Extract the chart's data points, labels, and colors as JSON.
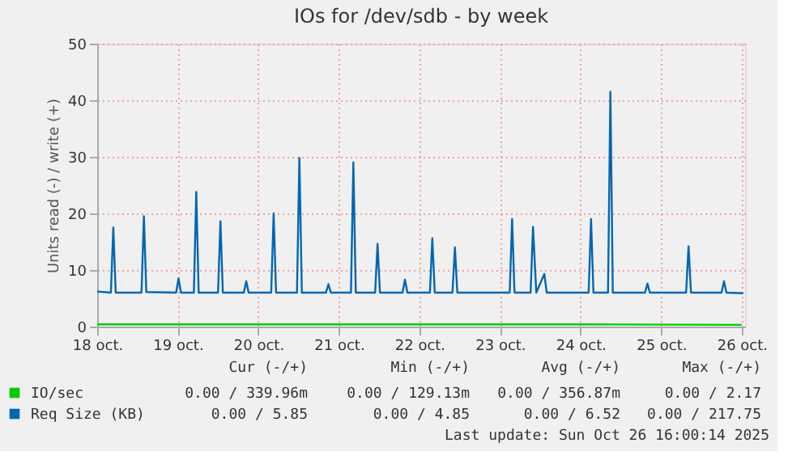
{
  "chart_data": {
    "type": "line",
    "title": "IOs for /dev/sdb - by week",
    "ylabel": "Units read (-) / write (+)",
    "xlim": [
      "2025-10-18T00:00",
      "2025-10-26T01:00"
    ],
    "ylim": [
      0,
      50
    ],
    "xticks": [
      {
        "value": "2025-10-18",
        "label": "18 oct."
      },
      {
        "value": "2025-10-19",
        "label": "19 oct."
      },
      {
        "value": "2025-10-20",
        "label": "20 oct."
      },
      {
        "value": "2025-10-21",
        "label": "21 oct."
      },
      {
        "value": "2025-10-22",
        "label": "22 oct."
      },
      {
        "value": "2025-10-23",
        "label": "23 oct."
      },
      {
        "value": "2025-10-24",
        "label": "24 oct."
      },
      {
        "value": "2025-10-25",
        "label": "25 oct."
      },
      {
        "value": "2025-10-26",
        "label": "26 oct."
      }
    ],
    "yticks": [
      0,
      10,
      20,
      30,
      40,
      50
    ],
    "grid": true,
    "legend": "bottom",
    "series": [
      {
        "name": "IO/sec",
        "color": "#00cc00",
        "x": [
          "2025-10-18T00:00",
          "2025-10-20T00:00",
          "2025-10-22T00:00",
          "2025-10-24T00:00",
          "2025-10-26T00:00"
        ],
        "values": [
          0.4,
          0.4,
          0.4,
          0.4,
          0.3
        ]
      },
      {
        "name": "Req Size (KB)",
        "color": "#0066b3",
        "x": [
          "2025-10-18T00:00",
          "2025-10-18T04:05",
          "2025-10-18T04:48",
          "2025-10-18T05:31",
          "2025-10-18T13:12",
          "2025-10-18T13:55",
          "2025-10-18T14:38",
          "2025-10-18T23:31",
          "2025-10-19T00:14",
          "2025-10-19T00:58",
          "2025-10-19T04:48",
          "2025-10-19T05:31",
          "2025-10-19T06:14",
          "2025-10-19T12:00",
          "2025-10-19T12:43",
          "2025-10-19T13:26",
          "2025-10-19T19:41",
          "2025-10-19T20:24",
          "2025-10-19T21:07",
          "2025-10-20T03:50",
          "2025-10-20T04:34",
          "2025-10-20T05:17",
          "2025-10-20T11:31",
          "2025-10-20T12:14",
          "2025-10-20T12:58",
          "2025-10-20T20:10",
          "2025-10-20T20:53",
          "2025-10-20T21:36",
          "2025-10-21T03:36",
          "2025-10-21T04:19",
          "2025-10-21T05:02",
          "2025-10-21T10:48",
          "2025-10-21T11:31",
          "2025-10-21T12:14",
          "2025-10-21T18:58",
          "2025-10-21T19:41",
          "2025-10-21T20:24",
          "2025-10-22T03:07",
          "2025-10-22T03:50",
          "2025-10-22T04:34",
          "2025-10-22T09:50",
          "2025-10-22T10:34",
          "2025-10-22T11:17",
          "2025-10-23T02:53",
          "2025-10-23T03:36",
          "2025-10-23T04:19",
          "2025-10-23T09:07",
          "2025-10-23T09:50",
          "2025-10-23T10:48",
          "2025-10-23T13:12",
          "2025-10-23T13:55",
          "2025-10-24T02:24",
          "2025-10-24T03:07",
          "2025-10-24T03:50",
          "2025-10-24T08:10",
          "2025-10-24T08:53",
          "2025-10-24T09:36",
          "2025-10-24T19:12",
          "2025-10-24T19:55",
          "2025-10-24T20:38",
          "2025-10-25T07:26",
          "2025-10-25T08:10",
          "2025-10-25T08:53",
          "2025-10-25T18:00",
          "2025-10-25T18:43",
          "2025-10-25T19:26",
          "2025-10-26T00:29"
        ],
        "values": [
          6.2,
          6,
          17.5,
          6,
          6,
          19.5,
          6.1,
          6,
          8.5,
          6,
          6,
          23.8,
          6,
          6,
          18.6,
          6,
          6,
          8,
          6,
          6,
          20,
          6,
          6,
          29.8,
          6,
          6,
          7.5,
          6,
          6,
          29,
          6,
          6,
          14.6,
          6,
          6,
          8.3,
          6,
          6,
          15.6,
          6,
          6,
          14,
          6,
          6,
          19,
          6,
          6,
          17.6,
          6,
          9.3,
          6,
          6,
          19,
          6,
          6,
          41.5,
          6,
          6,
          7.6,
          6,
          6,
          14.2,
          6,
          6,
          8,
          6,
          5.9
        ]
      }
    ],
    "annotations": [
      "Cur (-/+)",
      "Min (-/+)",
      "Avg (-/+)",
      "Max (-/+)",
      "0.00 / 339.96m",
      "0.00 / 129.13m",
      "0.00 / 356.87m",
      "0.00 / 2.17",
      "0.00 / 5.85",
      "0.00 / 4.85",
      "0.00 / 6.52",
      "0.00 / 217.75",
      "Last update: Sun Oct 26 16:00:14 2025"
    ]
  }
}
